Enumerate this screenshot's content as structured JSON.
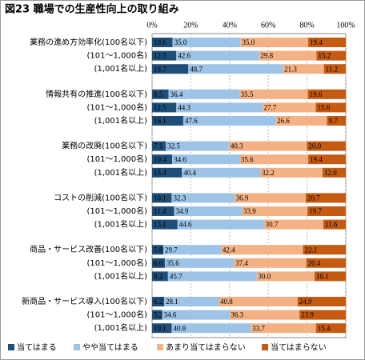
{
  "chart_data": {
    "type": "stacked_bar_horizontal",
    "title": "図23 職場での生産性向上の取り組み",
    "categories": [
      "業務の進め方効率化(100名以下)",
      "(101～1,000名)",
      "(1,001名以上)",
      "情報共有の推進(100名以下)",
      "(101～1,000名)",
      "(1,001名以上)",
      "業務の改廃(100名以下)",
      "(101～1,000名)",
      "(1,001名以上)",
      "コストの削減(100名以下)",
      "(101～1,000名)",
      "(1,001名以上)",
      "商品・サービス改善(100名以下)",
      "(101～1,000名)",
      "(1,001名以上)",
      "新商品・サービス導入(100名以下)",
      "(101～1,000名)",
      "(1,001名以上)"
    ],
    "series": [
      {
        "name": "当てはまる",
        "color": "#1f4e79",
        "values": [
          10.6,
          12.5,
          18.7,
          8.5,
          12.5,
          16.1,
          7.1,
          10.4,
          15.4,
          10.1,
          11.4,
          13.1,
          5.8,
          6.6,
          8.2,
          6.2,
          5.2,
          10.1
        ],
        "value_labels": [
          "10.6",
          "12.5",
          "18.7",
          "8.5",
          "12.5",
          "16.1",
          "7.1",
          "10.4",
          "15.4",
          "10.1",
          "11.4",
          "13.1",
          "5.8",
          "6.6",
          "8.2",
          "6.2",
          "5.2",
          "10.1"
        ]
      },
      {
        "name": "やや当てはまる",
        "color": "#9dc3e6",
        "values": [
          35.0,
          42.6,
          48.7,
          36.4,
          44.3,
          47.6,
          32.5,
          34.6,
          40.4,
          32.3,
          34.9,
          44.6,
          29.7,
          35.6,
          45.7,
          28.1,
          34.6,
          40.8
        ],
        "value_labels": [
          "35.0",
          "42.6",
          "48.7",
          "36.4",
          "44.3",
          "47.6",
          "32.5",
          "34.6",
          "40.4",
          "32.3",
          "34.9",
          "44.6",
          "29.7",
          "35.6",
          "45.7",
          "28.1",
          "34.6",
          "40.8"
        ]
      },
      {
        "name": "あまり当てはまらない",
        "color": "#f4b183",
        "values": [
          35.0,
          29.8,
          21.3,
          35.5,
          27.7,
          26.6,
          40.3,
          35.6,
          32.2,
          36.9,
          33.9,
          30.7,
          42.4,
          37.4,
          30.0,
          40.8,
          36.3,
          33.7
        ],
        "value_labels": [
          "35.0",
          "29.8",
          "21.3",
          "35.5",
          "27.7",
          "26.6",
          "40.3",
          "35.6",
          "32.2",
          "36.9",
          "33.9",
          "30.7",
          "42.4",
          "37.4",
          "30.0",
          "40.8",
          "36.3",
          "33.7"
        ]
      },
      {
        "name": "当てはまらない",
        "color": "#c55a11",
        "values": [
          19.4,
          15.2,
          11.2,
          19.6,
          15.6,
          9.7,
          20.0,
          19.4,
          12.0,
          20.7,
          19.7,
          11.6,
          22.1,
          20.4,
          16.1,
          24.9,
          23.9,
          15.4
        ],
        "value_labels": [
          "19.4",
          "15.2",
          "11.2",
          "19.6",
          "15.6",
          "9.7",
          "20.0",
          "19.4",
          "12.0",
          "20.7",
          "19.7",
          "11.6",
          "22.1",
          "20.4",
          "16.1",
          "24.9",
          "23.9",
          "15.4"
        ]
      }
    ],
    "xlim": [
      0,
      100
    ],
    "xticks": [
      {
        "value": 0,
        "label": "0%"
      },
      {
        "value": 20,
        "label": "20%"
      },
      {
        "value": 40,
        "label": "40%"
      },
      {
        "value": 60,
        "label": "60%"
      },
      {
        "value": 80,
        "label": "80%"
      },
      {
        "value": 100,
        "label": "100%"
      }
    ],
    "grid": true,
    "legend": "bottom"
  }
}
